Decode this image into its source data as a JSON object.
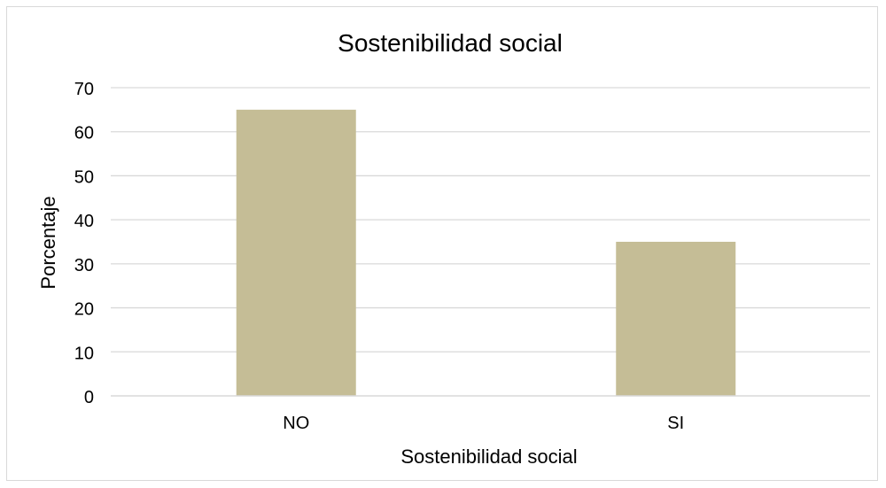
{
  "chart_data": {
    "type": "bar",
    "title": "Sostenibilidad social",
    "xlabel": "Sostenibilidad social",
    "ylabel": "Porcentaje",
    "categories": [
      "NO",
      "SI"
    ],
    "values": [
      65,
      35
    ],
    "ylim": [
      0,
      70
    ],
    "yticks": [
      0,
      10,
      20,
      30,
      40,
      50,
      60,
      70
    ],
    "grid": true,
    "legend": "none",
    "bar_color": "#c5bd96",
    "grid_color": "#d9d9d9"
  }
}
